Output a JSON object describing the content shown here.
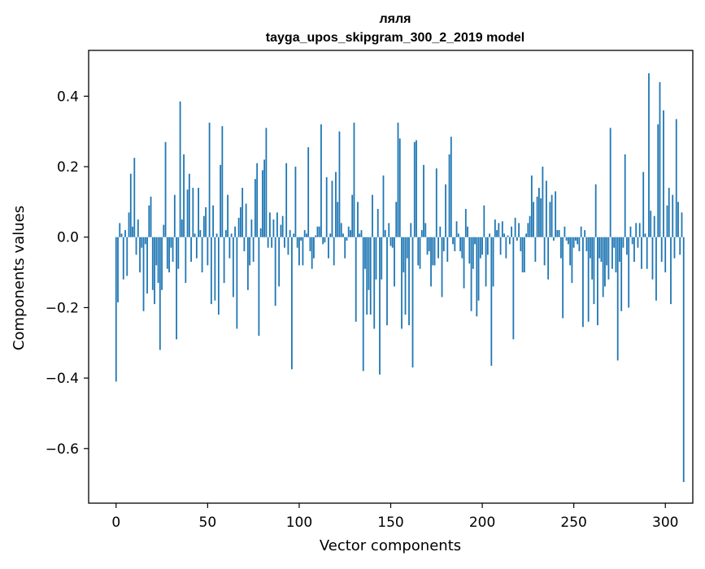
{
  "chart_data": {
    "type": "bar",
    "title_line1": "ляля",
    "title_line2": "tayga_upos_skipgram_300_2_2019 model",
    "xlabel": "Vector components",
    "ylabel": "Components values",
    "xlim": [
      -15,
      315
    ],
    "ylim": [
      -0.755,
      0.53
    ],
    "xticks": [
      0,
      50,
      100,
      150,
      200,
      250,
      300
    ],
    "yticks": [
      -0.6,
      -0.4,
      -0.2,
      0.0,
      0.2,
      0.4
    ],
    "xtick_labels": [
      "0",
      "50",
      "100",
      "150",
      "200",
      "250",
      "300"
    ],
    "ytick_labels": [
      "−0.6",
      "−0.4",
      "−0.2",
      "0.0",
      "0.2",
      "0.4"
    ],
    "bar_color": "#1f77b4",
    "grid": false,
    "values": [
      -0.41,
      -0.185,
      0.04,
      0.01,
      -0.12,
      0.02,
      -0.11,
      0.07,
      0.18,
      0.03,
      0.225,
      -0.05,
      0.05,
      -0.1,
      -0.03,
      -0.21,
      -0.02,
      -0.16,
      0.09,
      0.115,
      -0.15,
      -0.19,
      -0.08,
      -0.13,
      -0.32,
      -0.15,
      0.035,
      0.27,
      -0.09,
      -0.1,
      -0.03,
      -0.07,
      0.12,
      -0.29,
      -0.09,
      0.385,
      0.05,
      0.235,
      -0.13,
      0.135,
      0.18,
      -0.07,
      0.14,
      0.01,
      -0.06,
      0.14,
      0.02,
      -0.1,
      0.06,
      0.085,
      -0.08,
      0.325,
      -0.19,
      0.09,
      -0.18,
      0.01,
      -0.22,
      0.205,
      0.315,
      -0.13,
      0.02,
      0.12,
      -0.06,
      0.01,
      -0.17,
      0.03,
      -0.26,
      0.055,
      0.085,
      0.14,
      -0.04,
      0.095,
      -0.15,
      -0.08,
      0.05,
      -0.07,
      0.165,
      0.21,
      -0.28,
      0.025,
      0.19,
      0.22,
      0.31,
      -0.03,
      0.07,
      -0.03,
      0.05,
      -0.195,
      0.07,
      -0.14,
      0.035,
      0.06,
      -0.03,
      0.21,
      -0.05,
      0.02,
      -0.375,
      0.01,
      0.2,
      -0.03,
      -0.08,
      -0.01,
      -0.08,
      0.02,
      0.01,
      0.255,
      -0.04,
      -0.09,
      -0.06,
      0.005,
      0.03,
      0.03,
      0.32,
      -0.02,
      -0.015,
      0.17,
      -0.06,
      0.01,
      0.16,
      -0.08,
      0.185,
      0.1,
      0.3,
      0.04,
      0.01,
      -0.06,
      -0.01,
      0.03,
      0.02,
      0.12,
      0.325,
      -0.24,
      0.1,
      0.01,
      0.02,
      -0.38,
      -0.09,
      -0.22,
      -0.15,
      -0.22,
      0.12,
      -0.26,
      -0.12,
      0.08,
      -0.39,
      -0.12,
      0.175,
      0.02,
      -0.25,
      0.04,
      -0.025,
      -0.03,
      -0.14,
      0.1,
      0.325,
      0.28,
      -0.26,
      -0.1,
      -0.22,
      -0.06,
      -0.25,
      0.04,
      -0.37,
      0.27,
      0.275,
      -0.08,
      -0.09,
      0.02,
      0.205,
      0.04,
      -0.05,
      -0.04,
      -0.14,
      -0.08,
      -0.08,
      0.195,
      -0.06,
      0.03,
      -0.17,
      -0.04,
      0.15,
      -0.07,
      0.235,
      0.285,
      -0.02,
      -0.04,
      0.045,
      0.01,
      -0.04,
      -0.06,
      -0.145,
      0.08,
      0.03,
      -0.075,
      -0.21,
      -0.09,
      -0.02,
      -0.225,
      -0.18,
      -0.06,
      -0.05,
      0.09,
      -0.14,
      -0.05,
      0.01,
      -0.365,
      -0.14,
      0.05,
      0.02,
      0.04,
      -0.05,
      0.045,
      0.01,
      -0.06,
      0.005,
      -0.02,
      0.03,
      -0.29,
      0.055,
      -0.01,
      0.04,
      -0.04,
      -0.1,
      -0.1,
      0.01,
      0.04,
      0.06,
      0.175,
      0.1,
      -0.07,
      0.115,
      0.14,
      0.11,
      0.2,
      -0.08,
      0.16,
      -0.12,
      0.1,
      0.12,
      -0.01,
      0.13,
      0.02,
      0.02,
      -0.06,
      -0.23,
      0.03,
      -0.01,
      -0.02,
      -0.08,
      -0.13,
      -0.03,
      -0.01,
      -0.02,
      -0.04,
      0.03,
      -0.255,
      0.02,
      -0.04,
      -0.24,
      -0.06,
      -0.12,
      -0.19,
      0.15,
      -0.25,
      -0.06,
      -0.07,
      -0.17,
      -0.14,
      -0.08,
      -0.12,
      0.31,
      -0.09,
      -0.03,
      -0.1,
      -0.35,
      -0.07,
      -0.21,
      -0.03,
      0.235,
      -0.05,
      -0.2,
      0.03,
      -0.02,
      -0.07,
      0.04,
      -0.03,
      0.04,
      -0.09,
      0.185,
      0.01,
      -0.09,
      0.465,
      0.075,
      -0.12,
      0.06,
      -0.18,
      0.32,
      0.44,
      -0.07,
      0.36,
      -0.1,
      0.09,
      0.14,
      -0.19,
      0.12,
      -0.06,
      0.335,
      0.1,
      -0.05,
      0.07,
      -0.695
    ]
  }
}
